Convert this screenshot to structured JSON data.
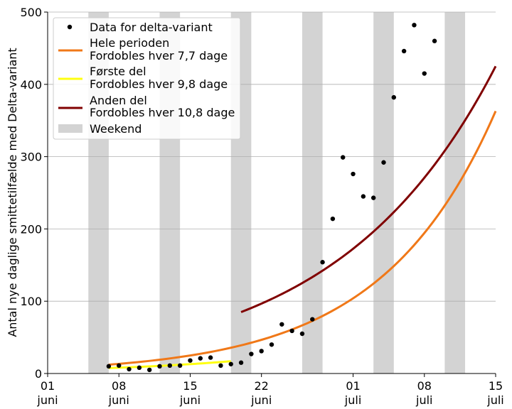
{
  "chart_data": {
    "type": "scatter+line",
    "ylabel": "Antal nye daglige smittetilfælde med Delta-variant",
    "xlabel": "",
    "ylim": [
      0,
      500
    ],
    "yticks": [
      0,
      100,
      200,
      300,
      400,
      500
    ],
    "xlim": [
      "2021-06-01",
      "2021-07-15"
    ],
    "xticks": [
      {
        "date": "2021-06-01",
        "day": "01",
        "month": "juni"
      },
      {
        "date": "2021-06-08",
        "day": "08",
        "month": "juni"
      },
      {
        "date": "2021-06-15",
        "day": "15",
        "month": "juni"
      },
      {
        "date": "2021-06-22",
        "day": "22",
        "month": "juni"
      },
      {
        "date": "2021-07-01",
        "day": "01",
        "month": "juli"
      },
      {
        "date": "2021-07-08",
        "day": "08",
        "month": "juli"
      },
      {
        "date": "2021-07-15",
        "day": "15",
        "month": "juli"
      }
    ],
    "grid": "horizontal",
    "legend_position": "top-left",
    "weekends": [
      [
        "2021-06-05",
        "2021-06-07"
      ],
      [
        "2021-06-12",
        "2021-06-14"
      ],
      [
        "2021-06-19",
        "2021-06-21"
      ],
      [
        "2021-06-26",
        "2021-06-28"
      ],
      [
        "2021-07-03",
        "2021-07-05"
      ],
      [
        "2021-07-10",
        "2021-07-12"
      ]
    ],
    "scatter": {
      "name": "Data for delta-variant",
      "color": "#000000",
      "points": [
        {
          "x": "2021-06-07",
          "y": 10
        },
        {
          "x": "2021-06-08",
          "y": 11
        },
        {
          "x": "2021-06-09",
          "y": 6
        },
        {
          "x": "2021-06-10",
          "y": 8
        },
        {
          "x": "2021-06-11",
          "y": 5
        },
        {
          "x": "2021-06-12",
          "y": 10
        },
        {
          "x": "2021-06-13",
          "y": 11
        },
        {
          "x": "2021-06-14",
          "y": 11
        },
        {
          "x": "2021-06-15",
          "y": 18
        },
        {
          "x": "2021-06-16",
          "y": 21
        },
        {
          "x": "2021-06-17",
          "y": 22
        },
        {
          "x": "2021-06-18",
          "y": 11
        },
        {
          "x": "2021-06-19",
          "y": 13
        },
        {
          "x": "2021-06-20",
          "y": 15
        },
        {
          "x": "2021-06-21",
          "y": 27
        },
        {
          "x": "2021-06-22",
          "y": 31
        },
        {
          "x": "2021-06-23",
          "y": 40
        },
        {
          "x": "2021-06-24",
          "y": 68
        },
        {
          "x": "2021-06-25",
          "y": 59
        },
        {
          "x": "2021-06-26",
          "y": 55
        },
        {
          "x": "2021-06-27",
          "y": 75
        },
        {
          "x": "2021-06-28",
          "y": 154
        },
        {
          "x": "2021-06-29",
          "y": 214
        },
        {
          "x": "2021-06-30",
          "y": 299
        },
        {
          "x": "2021-07-01",
          "y": 276
        },
        {
          "x": "2021-07-02",
          "y": 245
        },
        {
          "x": "2021-07-03",
          "y": 243
        },
        {
          "x": "2021-07-04",
          "y": 292
        },
        {
          "x": "2021-07-05",
          "y": 382
        },
        {
          "x": "2021-07-06",
          "y": 446
        },
        {
          "x": "2021-07-07",
          "y": 482
        },
        {
          "x": "2021-07-08",
          "y": 415
        },
        {
          "x": "2021-07-09",
          "y": 460
        }
      ]
    },
    "series": [
      {
        "name": "Hele perioden",
        "subtitle": "Fordobles hver 7,7 dage",
        "color": "#f07818",
        "x_start": "2021-06-07",
        "x_end": "2021-07-15",
        "y_start": 12.2,
        "y_end": 363,
        "growth": "exponential"
      },
      {
        "name": "Første del",
        "subtitle": "Fordobles hver 9,8 dage",
        "color": "#ffff10",
        "x_start": "2021-06-07",
        "x_end": "2021-06-19",
        "y_start": 7.5,
        "y_end": 17,
        "growth": "exponential"
      },
      {
        "name": "Anden del",
        "subtitle": "Fordobles hver 10,8 dage",
        "color": "#800000",
        "x_start": "2021-06-20",
        "x_end": "2021-07-15",
        "y_start": 85,
        "y_end": 425,
        "growth": "exponential"
      }
    ],
    "weekend_legend": "Weekend",
    "weekend_color": "#d3d3d3"
  }
}
